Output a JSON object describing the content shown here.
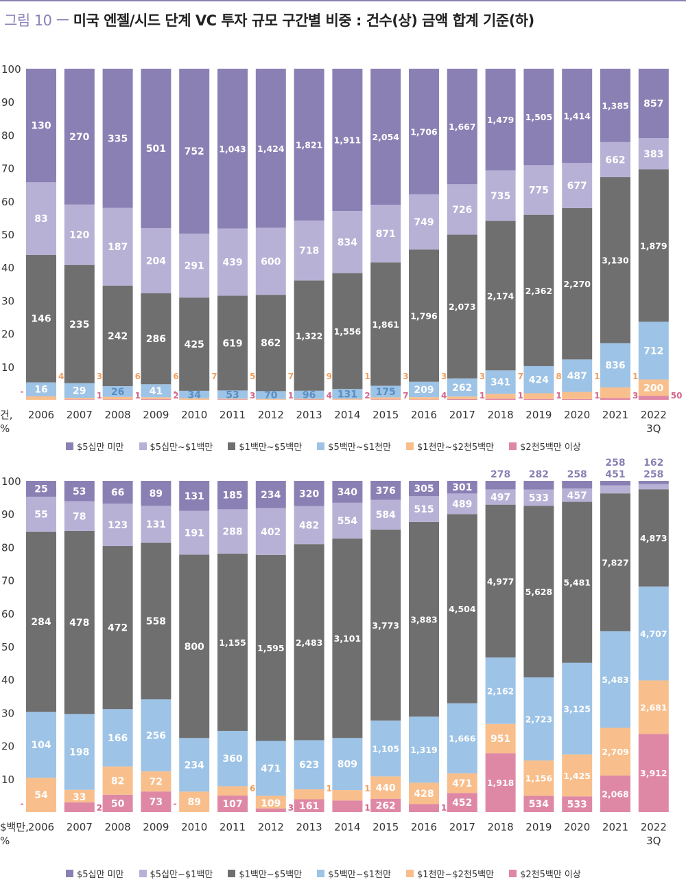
{
  "title": {
    "prefix": "그림 10 ㅡ ",
    "main": "미국 엔젤/시드 단계 VC 투자 규모 구간별 비중 : 건수(상) 금액 합계 기준(하)"
  },
  "colors": [
    "#8b80b4",
    "#b8b1d6",
    "#6f6f6f",
    "#9dc3e6",
    "#f8bf8c",
    "#df88a5"
  ],
  "legend": [
    "$5십만 미만",
    "$5십만~$1백만",
    "$1백만~$5백만",
    "$5백만~$1천만",
    "$1천만~$2천5백만",
    "$2천5백만 이상"
  ],
  "chart_data": [
    {
      "type": "bar",
      "stacked": "percent",
      "ylabel": "건, %",
      "ylim": [
        0,
        100
      ],
      "yticks": [
        "10",
        "20",
        "30",
        "40",
        "50",
        "60",
        "70",
        "80",
        "90",
        "100"
      ],
      "categories": [
        "2006",
        "2007",
        "2008",
        "2009",
        "2010",
        "2011",
        "2012",
        "2013",
        "2014",
        "2015",
        "2016",
        "2017",
        "2018",
        "2019",
        "2020",
        "2021",
        "2022\n3Q"
      ],
      "series": [
        {
          "name": "$5십만 미만",
          "values": [
            130,
            270,
            335,
            501,
            752,
            1043,
            1424,
            1821,
            1911,
            2054,
            1706,
            1667,
            1479,
            1505,
            1414,
            1385,
            857
          ],
          "labels": [
            "130",
            "270",
            "335",
            "501",
            "752",
            "1,043",
            "1,424",
            "1,821",
            "1,911",
            "2,054",
            "1,706",
            "1,667",
            "1,479",
            "1,505",
            "1,414",
            "1,385",
            "857"
          ]
        },
        {
          "name": "$5십만~$1백만",
          "values": [
            83,
            120,
            187,
            204,
            291,
            439,
            600,
            718,
            834,
            871,
            749,
            726,
            735,
            775,
            677,
            662,
            383
          ],
          "labels": [
            "83",
            "120",
            "187",
            "204",
            "291",
            "439",
            "600",
            "718",
            "834",
            "871",
            "749",
            "726",
            "735",
            "775",
            "677",
            "662",
            "383"
          ]
        },
        {
          "name": "$1백만~$5백만",
          "values": [
            146,
            235,
            242,
            286,
            425,
            619,
            862,
            1322,
            1556,
            1861,
            1796,
            2073,
            2174,
            2362,
            2270,
            3130,
            1879
          ],
          "labels": [
            "146",
            "235",
            "242",
            "286",
            "425",
            "619",
            "862",
            "1,322",
            "1,556",
            "1,861",
            "1,796",
            "2,073",
            "2,174",
            "2,362",
            "2,270",
            "3,130",
            "1,879"
          ]
        },
        {
          "name": "$5백만~$1천만",
          "values": [
            16,
            29,
            26,
            41,
            34,
            53,
            70,
            96,
            131,
            175,
            209,
            262,
            341,
            424,
            487,
            836,
            712
          ],
          "labels": [
            "16",
            "29",
            "26",
            "41",
            "34",
            "53",
            "70",
            "96",
            "131",
            "175",
            "209",
            "262",
            "341",
            "424",
            "487",
            "836",
            "712"
          ]
        },
        {
          "name": "$1천만~$2천5백만",
          "values": [
            4,
            3,
            6,
            6,
            7,
            5,
            7,
            9,
            12,
            30,
            32,
            37,
            70,
            88,
            106,
            199,
            200
          ],
          "labels": [
            "4",
            "3",
            "6",
            "6",
            "7",
            "5",
            "7",
            "9",
            "12",
            "30",
            "32",
            "37",
            "70",
            "88",
            "106",
            "199",
            "200"
          ]
        },
        {
          "name": "$2천5백만 이상",
          "values": [
            0,
            1,
            1,
            2,
            0,
            3,
            1,
            4,
            2,
            7,
            4,
            10,
            17,
            14,
            12,
            35,
            50
          ],
          "labels": [
            "-",
            "1",
            "1",
            "2",
            "-",
            "3",
            "1",
            "4",
            "2",
            "7",
            "4",
            "10",
            "17",
            "14",
            "12",
            "35",
            "50"
          ]
        }
      ]
    },
    {
      "type": "bar",
      "stacked": "percent",
      "ylabel": "$백만, %",
      "ylim": [
        0,
        100
      ],
      "yticks": [
        "10",
        "20",
        "30",
        "40",
        "50",
        "60",
        "70",
        "80",
        "90",
        "100"
      ],
      "categories": [
        "2006",
        "2007",
        "2008",
        "2009",
        "2010",
        "2011",
        "2012",
        "2013",
        "2014",
        "2015",
        "2016",
        "2017",
        "2018",
        "2019",
        "2020",
        "2021",
        "2022\n3Q"
      ],
      "series": [
        {
          "name": "$5십만 미만",
          "values": [
            25,
            53,
            66,
            89,
            131,
            185,
            234,
            320,
            340,
            376,
            305,
            301,
            278,
            282,
            258,
            258,
            162
          ],
          "labels": [
            "25",
            "53",
            "66",
            "89",
            "131",
            "185",
            "234",
            "320",
            "340",
            "376",
            "305",
            "301",
            "278",
            "282",
            "258",
            "258",
            "162"
          ]
        },
        {
          "name": "$5십만~$1백만",
          "values": [
            55,
            78,
            123,
            131,
            191,
            288,
            402,
            482,
            554,
            584,
            515,
            489,
            497,
            533,
            457,
            451,
            258
          ],
          "labels": [
            "55",
            "78",
            "123",
            "131",
            "191",
            "288",
            "402",
            "482",
            "554",
            "584",
            "515",
            "489",
            "497",
            "533",
            "457",
            "451",
            "258"
          ]
        },
        {
          "name": "$1백만~$5백만",
          "values": [
            284,
            478,
            472,
            558,
            800,
            1155,
            1595,
            2483,
            3101,
            3773,
            3883,
            4504,
            4977,
            5628,
            5481,
            7827,
            4873
          ],
          "labels": [
            "284",
            "478",
            "472",
            "558",
            "800",
            "1,155",
            "1,595",
            "2,483",
            "3,101",
            "3,773",
            "3,883",
            "4,504",
            "4,977",
            "5,628",
            "5,481",
            "7,827",
            "4,873"
          ]
        },
        {
          "name": "$5백만~$1천만",
          "values": [
            104,
            198,
            166,
            256,
            234,
            360,
            471,
            623,
            809,
            1105,
            1319,
            1666,
            2162,
            2723,
            3125,
            5483,
            4707
          ],
          "labels": [
            "104",
            "198",
            "166",
            "256",
            "234",
            "360",
            "471",
            "623",
            "809",
            "1,105",
            "1,319",
            "1,666",
            "2,162",
            "2,723",
            "3,125",
            "5,483",
            "4,707"
          ]
        },
        {
          "name": "$1천만~$2천5백만",
          "values": [
            54,
            33,
            82,
            72,
            89,
            61,
            109,
            126,
            162,
            440,
            428,
            471,
            951,
            1156,
            1425,
            2709,
            2681
          ],
          "labels": [
            "54",
            "33",
            "82",
            "72",
            "89",
            "61",
            "109",
            "126",
            "162",
            "440",
            "428",
            "471",
            "951",
            "1,156",
            "1,425",
            "2,709",
            "2,681"
          ]
        },
        {
          "name": "$2천5백만 이상",
          "values": [
            0,
            25,
            50,
            73,
            0,
            107,
            30,
            161,
            179,
            262,
            157,
            452,
            1918,
            534,
            533,
            2068,
            3912
          ],
          "labels": [
            "-",
            "25",
            "50",
            "73",
            "-",
            "107",
            "30",
            "161",
            "179",
            "262",
            "157",
            "452",
            "1,918",
            "534",
            "533",
            "2,068",
            "3,912"
          ]
        }
      ]
    }
  ]
}
